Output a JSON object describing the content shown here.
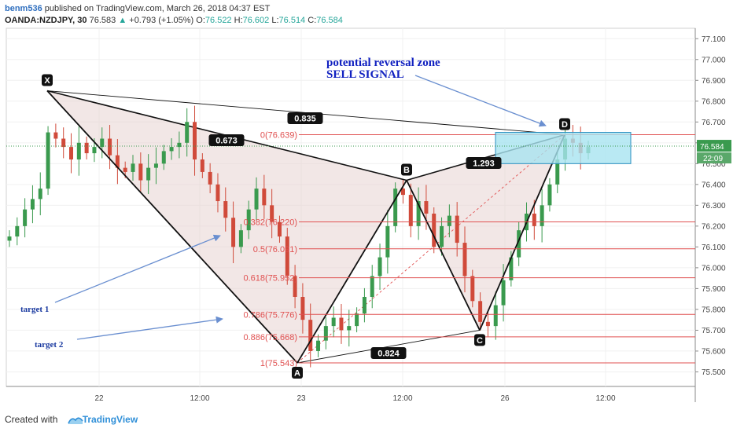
{
  "header": {
    "author": "benm536",
    "published_text": "published on TradingView.com, March 26, 2018 04:37 EST",
    "symbol": "OANDA:NZDJPY, 30",
    "last": "76.583",
    "change_arrow": "▲",
    "change": "+0.793 (+1.05%)",
    "open_label": "O:",
    "open": "76.522",
    "high_label": "H:",
    "high": "76.602",
    "low_label": "L:",
    "low": "76.514",
    "close_label": "C:",
    "close": "76.584"
  },
  "footer": {
    "created_with": "Created with",
    "brand": "TradingView"
  },
  "colors": {
    "bull": "#3a9a4e",
    "bear": "#d04a3a",
    "pattern_fill": "#e8d4d2",
    "fib_line": "#e05050",
    "prz_fill": "#a8e4f0",
    "prz_border": "#2a8fc0",
    "annotation_text": "#1020c0",
    "arrow": "#6a8fd0",
    "target_text": "#1a3aa0",
    "price_tag": "#3a9a4e"
  },
  "chart_data": {
    "type": "candlestick",
    "title": "OANDA:NZDJPY, 30",
    "ylim": [
      75.43,
      77.15
    ],
    "y_ticks": [
      "77.100",
      "77.000",
      "76.900",
      "76.800",
      "76.700",
      "76.600",
      "76.500",
      "76.400",
      "76.300",
      "76.200",
      "76.100",
      "76.000",
      "75.900",
      "75.800",
      "75.700",
      "75.600",
      "75.500"
    ],
    "x_ticks": [
      "22",
      "12:00",
      "23",
      "12:00",
      "26",
      "12:00"
    ],
    "current_price_label": "76.584",
    "countdown_label": "22:09",
    "pattern_points": [
      {
        "label": "X",
        "price": 76.85
      },
      {
        "label": "A",
        "price": 75.543
      },
      {
        "label": "B",
        "price": 76.42
      },
      {
        "label": "C",
        "price": 75.7
      },
      {
        "label": "D",
        "price": 76.639
      }
    ],
    "ratio_labels": [
      "0.835",
      "0.673",
      "1.293",
      "0.824"
    ],
    "fib_levels": [
      {
        "label": "0(76.639)",
        "price": 76.639
      },
      {
        "label": "0.382(76.220)",
        "price": 76.22
      },
      {
        "label": "0.5(76.091)",
        "price": 76.091
      },
      {
        "label": "0.618(75.952)",
        "price": 75.952
      },
      {
        "label": "0.786(75.776)",
        "price": 75.776
      },
      {
        "label": "0.886(75.668)",
        "price": 75.668
      },
      {
        "label": "1(75.543)",
        "price": 75.543
      }
    ],
    "prz": {
      "top": 76.65,
      "bottom": 76.5
    },
    "annotations": {
      "prz_title": "potential reversal zone",
      "prz_signal": "SELL SIGNAL",
      "target1": "target 1",
      "target2": "target 2"
    },
    "price_path": [
      76.15,
      76.2,
      76.28,
      76.33,
      76.38,
      76.65,
      76.62,
      76.58,
      76.52,
      76.6,
      76.55,
      76.58,
      76.62,
      76.54,
      76.48,
      76.46,
      76.5,
      76.42,
      76.48,
      76.5,
      76.56,
      76.58,
      76.6,
      76.7,
      76.52,
      76.46,
      76.4,
      76.32,
      76.24,
      76.1,
      76.18,
      76.28,
      76.38,
      76.3,
      76.22,
      76.15,
      75.96,
      75.86,
      75.75,
      75.6,
      75.65,
      75.72,
      75.76,
      75.7,
      75.72,
      75.78,
      75.86,
      75.96,
      76.05,
      76.2,
      76.38,
      76.35,
      76.2,
      76.32,
      76.26,
      76.1,
      76.2,
      76.25,
      76.12,
      75.96,
      75.84,
      75.74,
      75.72,
      75.82,
      75.94,
      76.05,
      76.18,
      76.26,
      76.2,
      76.3,
      76.4,
      76.52,
      76.62,
      76.6,
      76.55,
      76.58
    ]
  }
}
